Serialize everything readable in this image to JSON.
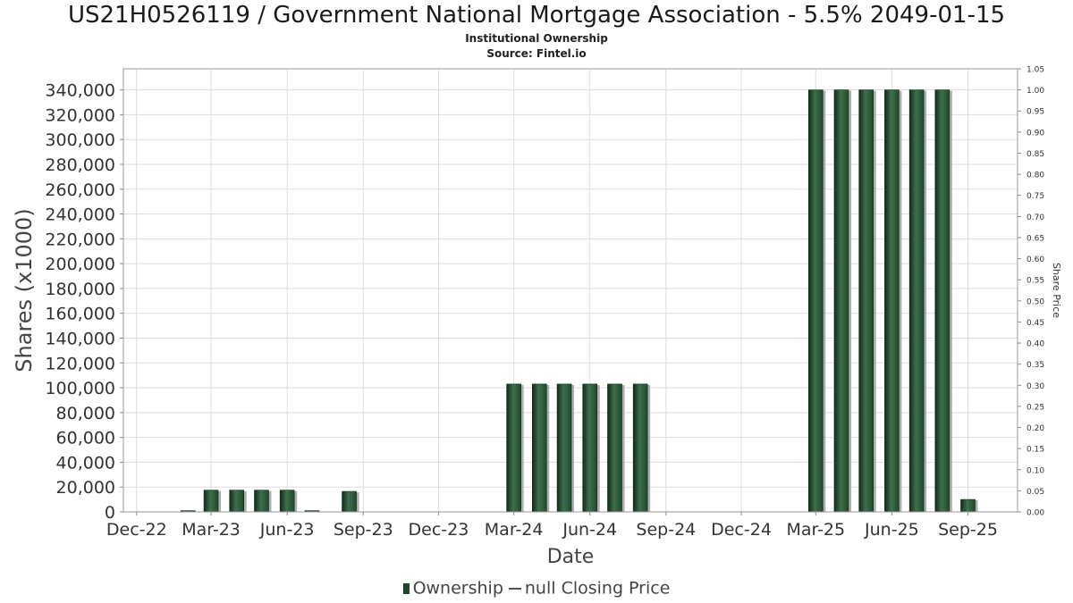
{
  "header": {
    "title": "US21H0526119 / Government National Mortgage Association - 5.5% 2049-01-15",
    "subtitle": "Institutional Ownership",
    "source": "Source: Fintel.io"
  },
  "legend": {
    "ownership_label": "Ownership",
    "price_label": "null Closing Price"
  },
  "colors": {
    "bar": "#1e4a2c",
    "bar_highlight": "#3f6e4d",
    "bar_shadow": "#9a9a9a",
    "grid": "#dddddd"
  },
  "chart_data": {
    "type": "bar",
    "xlabel": "Date",
    "ylabel": "Shares (x1000)",
    "y2label": "Share Price",
    "x_ticks": [
      "Dec-22",
      "Mar-23",
      "Jun-23",
      "Sep-23",
      "Dec-23",
      "Mar-24",
      "Jun-24",
      "Sep-24",
      "Dec-24",
      "Mar-25",
      "Jun-25",
      "Sep-25"
    ],
    "y_ticks": [
      "0",
      "20,000",
      "40,000",
      "60,000",
      "80,000",
      "100,000",
      "120,000",
      "140,000",
      "160,000",
      "180,000",
      "200,000",
      "220,000",
      "240,000",
      "260,000",
      "280,000",
      "300,000",
      "320,000",
      "340,000"
    ],
    "y2_ticks": [
      "0.00",
      "0.05",
      "0.10",
      "0.15",
      "0.20",
      "0.25",
      "0.30",
      "0.35",
      "0.40",
      "0.45",
      "0.50",
      "0.55",
      "0.60",
      "0.65",
      "0.70",
      "0.75",
      "0.80",
      "0.85",
      "0.90",
      "0.95",
      "1.00",
      "1.05"
    ],
    "ylim": [
      0,
      357000
    ],
    "y2lim": [
      0,
      1.05
    ],
    "x_range": [
      "2022-11-15",
      "2025-10-31"
    ],
    "grid": true,
    "legend_position": "bottom",
    "series": [
      {
        "name": "Ownership",
        "points": [
          {
            "date": "2023-02-01",
            "value": 1000
          },
          {
            "date": "2023-03-01",
            "value": 17500
          },
          {
            "date": "2023-04-01",
            "value": 17500
          },
          {
            "date": "2023-05-01",
            "value": 17500
          },
          {
            "date": "2023-06-01",
            "value": 17500
          },
          {
            "date": "2023-07-01",
            "value": 1000
          },
          {
            "date": "2023-08-15",
            "value": 16500
          },
          {
            "date": "2024-03-01",
            "value": 103000
          },
          {
            "date": "2024-04-01",
            "value": 103000
          },
          {
            "date": "2024-05-01",
            "value": 103000
          },
          {
            "date": "2024-06-01",
            "value": 103000
          },
          {
            "date": "2024-07-01",
            "value": 103000
          },
          {
            "date": "2024-08-01",
            "value": 103000
          },
          {
            "date": "2025-03-01",
            "value": 340000
          },
          {
            "date": "2025-04-01",
            "value": 340000
          },
          {
            "date": "2025-05-01",
            "value": 340000
          },
          {
            "date": "2025-06-01",
            "value": 340000
          },
          {
            "date": "2025-07-01",
            "value": 340000
          },
          {
            "date": "2025-08-01",
            "value": 340000
          },
          {
            "date": "2025-09-01",
            "value": 10000
          }
        ]
      },
      {
        "name": "null Closing Price",
        "points": []
      }
    ]
  }
}
